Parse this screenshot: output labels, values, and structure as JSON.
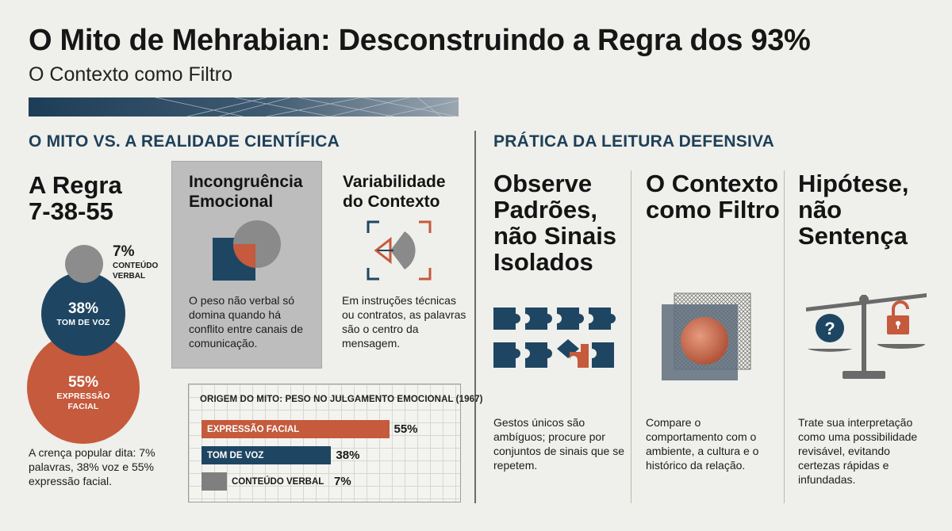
{
  "header": {
    "title": "O Mito de Mehrabian: Desconstruindo a Regra dos 93%",
    "subtitle": "O Contexto como Filtro"
  },
  "left_section": {
    "heading": "O MITO VS. A REALIDADE CIENTÍFICA",
    "rule": {
      "title_line1": "A Regra",
      "title_line2": "7-38-55",
      "circles": [
        {
          "pct": "7%",
          "label_line1": "CONTEÚDO",
          "label_line2": "VERBAL",
          "color": "#8c8c8c"
        },
        {
          "pct": "38%",
          "label_line1": "TOM DE VOZ",
          "label_line2": "",
          "color": "#1e4663"
        },
        {
          "pct": "55%",
          "label_line1": "EXPRESSÃO",
          "label_line2": "FACIAL",
          "color": "#c55a3c"
        }
      ],
      "caption": "A crença popular dita: 7% palavras, 38% voz e 55% expressão facial."
    },
    "incongruence": {
      "title": "Incongruência Emocional",
      "icon": "overlapping-square-circle-icon",
      "text": "O peso não verbal só domina quando há conflito entre canais de comunicação."
    },
    "variability": {
      "title": "Variabilidade do Contexto",
      "icon": "focus-frame-icon",
      "text": "Em instruções técnicas ou contratos, as palavras são o centro da mensagem."
    }
  },
  "chart_data": {
    "type": "bar",
    "title": "ORIGEM DO MITO: PESO NO JULGAMENTO EMOCIONAL (1967)",
    "categories": [
      "EXPRESSÃO FACIAL",
      "TOM DE VOZ",
      "CONTEÚDO VERBAL"
    ],
    "values": [
      55,
      38,
      7
    ],
    "value_labels": [
      "55%",
      "38%",
      "7%"
    ],
    "colors": [
      "#c55a3c",
      "#1e4663",
      "#7f7f7f"
    ],
    "xlim": [
      0,
      100
    ],
    "grid": true
  },
  "right_section": {
    "heading": "PRÁTICA DA LEITURA DEFENSIVA",
    "columns": [
      {
        "title": "Observe Padrões, não Sinais Isolados",
        "icon": "puzzle-pieces-icon",
        "text": "Gestos únicos são ambíguos; procure por conjuntos de sinais que se repetem."
      },
      {
        "title": "O Contexto como Filtro",
        "icon": "filter-layers-icon",
        "text": "Compare o comportamento com o ambiente, a cultura e o histórico da relação."
      },
      {
        "title": "Hipótese, não Sentença",
        "icon": "balance-scale-icon",
        "text": "Trate sua interpretação como uma possibilidade revisável, evitando certezas rápidas e infundadas."
      }
    ]
  },
  "colors": {
    "navy": "#1e4663",
    "rust": "#c55a3c",
    "grey": "#8c8c8c",
    "background": "#efefeb"
  }
}
